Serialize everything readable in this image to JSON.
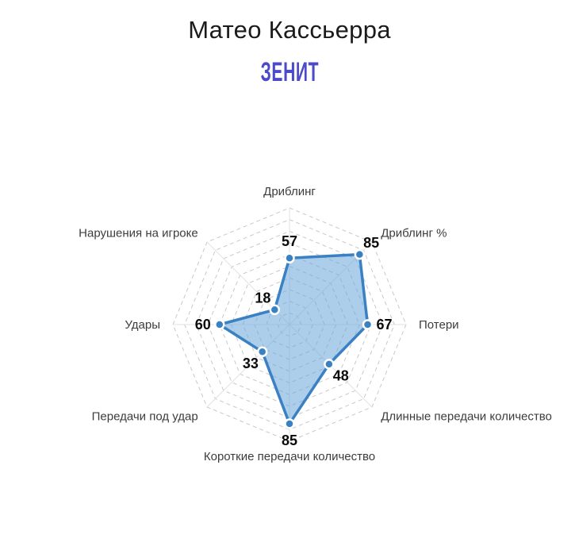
{
  "header": {
    "title": "Матео Кассьерра",
    "subtitle": "Зенит",
    "subtitle_color": "#4b4ac8",
    "title_color": "#1b1b1b"
  },
  "chart_data": {
    "type": "radar",
    "categories": [
      "Дриблинг",
      "Дриблинг %",
      "Потери",
      "Длинные передачи количество",
      "Короткие передачи количество",
      "Передачи под удар",
      "Удары",
      "Нарушения на игроке"
    ],
    "values": [
      57,
      85,
      67,
      48,
      85,
      33,
      60,
      18
    ],
    "scale": {
      "min": 0,
      "max": 100,
      "rings": 10
    },
    "legend": false,
    "grid": "dashed-octagons",
    "colors": {
      "fill": "rgba(106, 166, 216, 0.55)",
      "stroke": "#3a81c3",
      "point_fill": "#3a81c3",
      "point_border": "#ffffff",
      "grid_line": "#c8c8c8",
      "spoke_line": "#e2e2e2",
      "value_label": "#0a0a0a",
      "category_label": "#3c3c3c"
    }
  }
}
